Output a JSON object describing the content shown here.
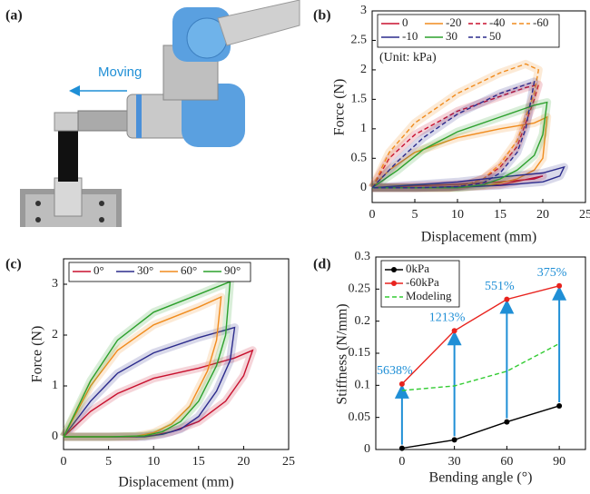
{
  "image_panel": {
    "label": "(a)",
    "text": "Moving"
  },
  "chart_data": [
    {
      "type": "line",
      "panel_label": "(b)",
      "x_label": "Displacement (mm)",
      "y_label": "Force (N)",
      "xlim": [
        0,
        25
      ],
      "ylim": [
        -0.25,
        3
      ],
      "xticks": [
        0,
        5,
        10,
        15,
        20,
        25
      ],
      "yticks": [
        0,
        0.5,
        1,
        1.5,
        2,
        2.5,
        3
      ],
      "legend": "upper left",
      "legend_columns": 4,
      "annotation": "(Unit: kPa)",
      "series": [
        {
          "name": "0",
          "color": "#c8102e",
          "dash": false,
          "x": [
            0,
            5,
            10,
            15,
            19,
            20,
            15,
            10,
            5,
            0
          ],
          "values": [
            0,
            0.03,
            0.06,
            0.1,
            0.15,
            0.2,
            0.05,
            0.02,
            0,
            0
          ]
        },
        {
          "name": "-20",
          "color": "#f08c1e",
          "dash": false,
          "x": [
            0,
            2,
            5,
            10,
            15,
            19,
            20.5,
            20,
            19,
            17,
            15,
            13,
            10,
            5,
            0
          ],
          "values": [
            0,
            0.3,
            0.6,
            0.85,
            1.0,
            1.1,
            1.2,
            0.5,
            0.3,
            0.15,
            0.08,
            0.03,
            0,
            0,
            0
          ]
        },
        {
          "name": "-40",
          "color": "#c8102e",
          "dash": true,
          "x": [
            0,
            2,
            5,
            10,
            15,
            18,
            19.5,
            19,
            18,
            17,
            15,
            13,
            11,
            9,
            5,
            0
          ],
          "values": [
            0,
            0.5,
            0.9,
            1.3,
            1.55,
            1.7,
            1.75,
            1.5,
            1.1,
            0.7,
            0.35,
            0.15,
            0.05,
            0,
            0,
            0
          ]
        },
        {
          "name": "-60",
          "color": "#f08c1e",
          "dash": true,
          "x": [
            0,
            2,
            5,
            10,
            15,
            18,
            19.5,
            19,
            18,
            17,
            15,
            13,
            11,
            9,
            5,
            0
          ],
          "values": [
            0,
            0.6,
            1.1,
            1.6,
            1.95,
            2.1,
            2.0,
            1.6,
            1.2,
            0.8,
            0.4,
            0.15,
            0.05,
            0,
            0,
            0
          ]
        },
        {
          "name": "-10",
          "color": "#2b2b8c",
          "dash": false,
          "x": [
            0,
            5,
            10,
            15,
            20,
            22.5,
            22,
            20,
            15,
            10,
            5,
            0
          ],
          "values": [
            0,
            0.05,
            0.1,
            0.18,
            0.25,
            0.35,
            0.2,
            0.1,
            0.04,
            0.01,
            0,
            0
          ]
        },
        {
          "name": "30",
          "color": "#2ca02c",
          "dash": false,
          "x": [
            0,
            3,
            6,
            10,
            15,
            19,
            20.5,
            20,
            19,
            17,
            15,
            13,
            10,
            5,
            0
          ],
          "values": [
            0,
            0.3,
            0.65,
            0.95,
            1.2,
            1.4,
            1.45,
            0.9,
            0.55,
            0.3,
            0.15,
            0.05,
            0,
            0,
            0
          ]
        },
        {
          "name": "50",
          "color": "#2b2b8c",
          "dash": true,
          "x": [
            0,
            3,
            6,
            10,
            15,
            18,
            19,
            18.5,
            18,
            17,
            15,
            13,
            10,
            5,
            0
          ],
          "values": [
            0,
            0.45,
            0.85,
            1.25,
            1.6,
            1.75,
            1.8,
            1.4,
            1.0,
            0.6,
            0.25,
            0.08,
            0.02,
            0,
            0
          ]
        }
      ]
    },
    {
      "type": "line",
      "panel_label": "(c)",
      "x_label": "Displacement (mm)",
      "y_label": "Force (N)",
      "xlim": [
        0,
        25
      ],
      "ylim": [
        -0.25,
        3.5
      ],
      "xticks": [
        0,
        5,
        10,
        15,
        20,
        25
      ],
      "yticks": [
        0,
        1,
        2,
        3
      ],
      "legend": "upper left",
      "legend_columns": 4,
      "series": [
        {
          "name": "0°",
          "color": "#c8102e",
          "dash": false,
          "x": [
            0,
            3,
            6,
            10,
            15,
            19,
            21,
            20,
            18,
            15,
            12,
            10,
            8,
            5,
            0
          ],
          "values": [
            0,
            0.5,
            0.85,
            1.15,
            1.35,
            1.55,
            1.7,
            1.2,
            0.7,
            0.3,
            0.1,
            0.03,
            0,
            0,
            0
          ]
        },
        {
          "name": "30°",
          "color": "#2b2b8c",
          "dash": false,
          "x": [
            0,
            3,
            6,
            10,
            15,
            18,
            19,
            18.5,
            17,
            15,
            13,
            11,
            9,
            5,
            0
          ],
          "values": [
            0,
            0.7,
            1.25,
            1.65,
            1.95,
            2.1,
            2.15,
            1.5,
            0.9,
            0.4,
            0.15,
            0.05,
            0,
            0,
            0
          ]
        },
        {
          "name": "60°",
          "color": "#f08c1e",
          "dash": false,
          "x": [
            0,
            3,
            6,
            10,
            15,
            17.5,
            17,
            16,
            14,
            12,
            10,
            8,
            5,
            0
          ],
          "values": [
            0,
            1,
            1.7,
            2.2,
            2.55,
            2.75,
            1.9,
            1.3,
            0.6,
            0.25,
            0.08,
            0.01,
            0,
            0
          ]
        },
        {
          "name": "90°",
          "color": "#2ca02c",
          "dash": false,
          "x": [
            0,
            3,
            6,
            10,
            15,
            18.5,
            18,
            17,
            15,
            13,
            11,
            9,
            5,
            0
          ],
          "values": [
            0,
            1.1,
            1.9,
            2.45,
            2.8,
            3.05,
            2.0,
            1.4,
            0.7,
            0.3,
            0.1,
            0.02,
            0,
            0
          ]
        }
      ]
    },
    {
      "type": "line",
      "panel_label": "(d)",
      "x_label": "Bending angle (°)",
      "y_label": "Stiffness (N/mm)",
      "x": [
        0,
        30,
        60,
        90
      ],
      "xlim": [
        -15,
        105
      ],
      "ylim": [
        0,
        0.3
      ],
      "xticks": [
        0,
        30,
        60,
        90
      ],
      "yticks": [
        0,
        0.05,
        0.1,
        0.15,
        0.2,
        0.25,
        0.3
      ],
      "legend": "upper left",
      "legend_columns": 1,
      "annotations": [
        "5638%",
        "1213%",
        "551%",
        "375%"
      ],
      "annotation_color": "#1f8fd6",
      "series": [
        {
          "name": "0kPa",
          "color": "#000000",
          "dash": false,
          "marker": true,
          "values": [
            0.002,
            0.015,
            0.043,
            0.068
          ]
        },
        {
          "name": "-60kPa",
          "color": "#e8231e",
          "dash": false,
          "marker": true,
          "values": [
            0.102,
            0.185,
            0.234,
            0.255
          ]
        },
        {
          "name": "Modeling",
          "color": "#33cc33",
          "dash": true,
          "marker": false,
          "values": [
            0.092,
            0.099,
            0.122,
            0.165
          ]
        }
      ]
    }
  ]
}
